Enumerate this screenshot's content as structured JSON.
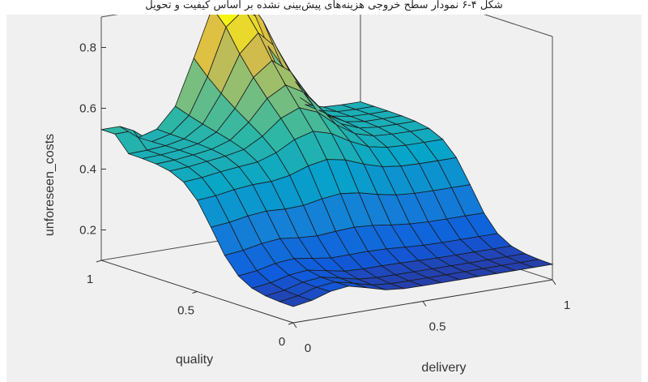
{
  "caption": "شکل ۴-۶ نمودار سطح خروجی هزینه‌های پیش‌بینی نشده بر اساس کیفیت و تحویل",
  "chart_data": {
    "type": "surface3d",
    "title": "",
    "xlabel": "delivery",
    "ylabel": "quality",
    "zlabel": "unforeseen_costs",
    "xlim": [
      0,
      1
    ],
    "ylim": [
      0,
      1
    ],
    "zlim": [
      0.1,
      0.9
    ],
    "x_ticks": [
      "0",
      "0.5",
      "1"
    ],
    "y_ticks": [
      "0",
      "0.5",
      "1"
    ],
    "z_ticks": [
      "0.2",
      "0.4",
      "0.6",
      "0.8"
    ],
    "grid": false,
    "colormap": "parula",
    "surface": {
      "grid_size": [
        15,
        15
      ],
      "description_points": [
        {
          "delivery": 0.5,
          "quality": 1.0,
          "unforeseen_costs": 0.87
        },
        {
          "delivery": 0.0,
          "quality": 1.0,
          "unforeseen_costs": 0.5
        },
        {
          "delivery": 1.0,
          "quality": 1.0,
          "unforeseen_costs": 0.5
        },
        {
          "delivery": 0.5,
          "quality": 0.5,
          "unforeseen_costs": 0.45
        },
        {
          "delivery": 0.0,
          "quality": 0.0,
          "unforeseen_costs": 0.15
        },
        {
          "delivery": 1.0,
          "quality": 0.0,
          "unforeseen_costs": 0.15
        }
      ]
    }
  }
}
